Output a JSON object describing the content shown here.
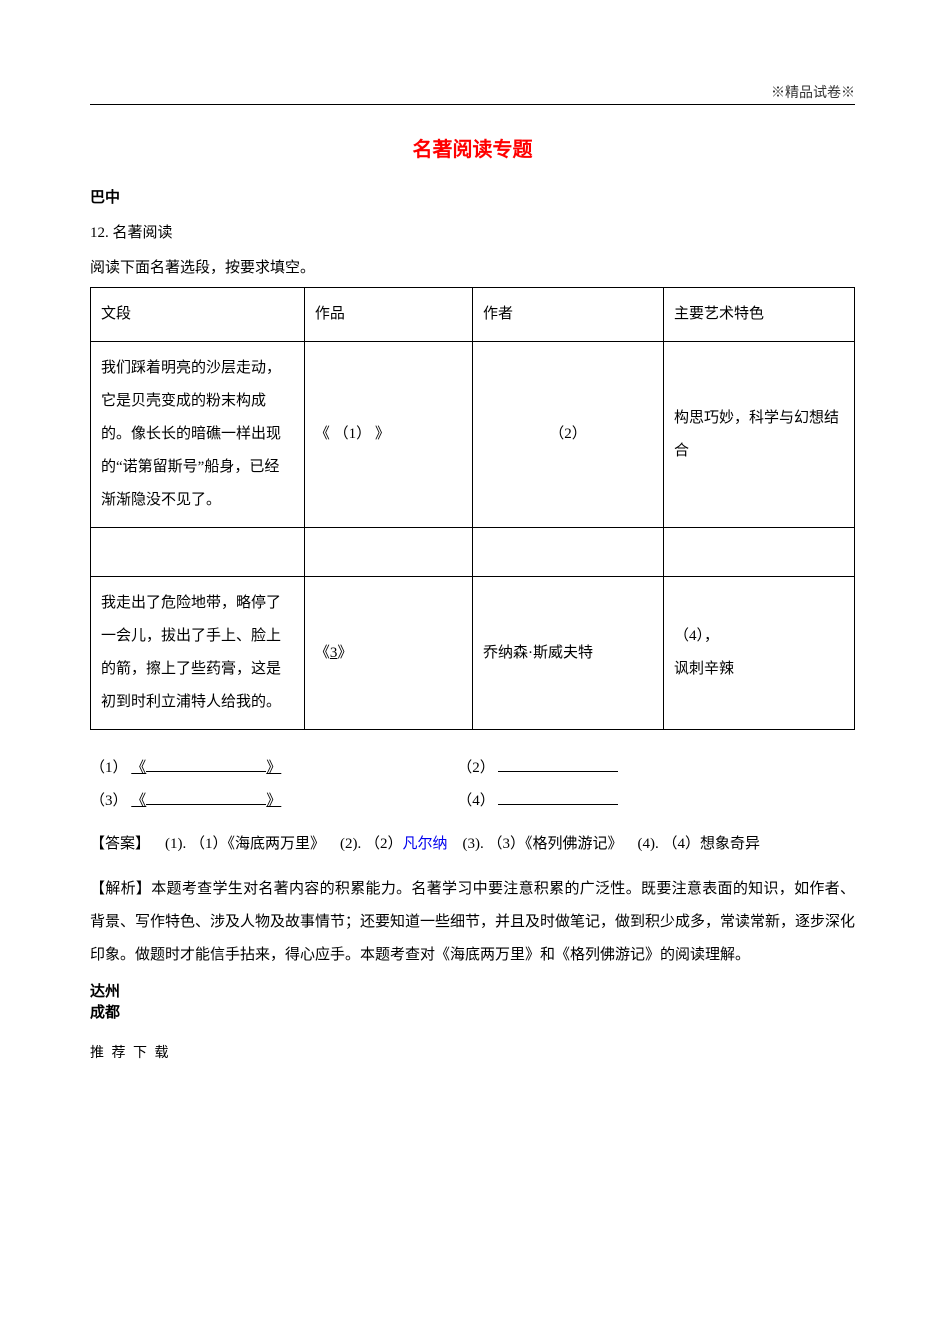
{
  "watermark": "※精品试卷※",
  "title": "名著阅读专题",
  "section_bazhong": "巴中",
  "qnum": "12.  名著阅读",
  "instruction": "阅读下面名著选段，按要求填空。",
  "table": {
    "headers": [
      "文段",
      "作品",
      "作者",
      "主要艺术特色"
    ],
    "row1": {
      "passage": "我们踩着明亮的沙层走动，它是贝壳变成的粉末构成的。像长长的暗礁一样出现的“诺第留斯号”船身，已经渐渐隐没不见了。",
      "work": "《   （1）  》",
      "author": "（2）",
      "feature": "构思巧妙，科学与幻想结合"
    },
    "row2": {
      "passage": "我走出了危险地带，略停了一会儿，拔出了手上、脸上的箭，擦上了些药膏，这是初到时利立浦特人给我的。",
      "work_prefix": "《",
      "work_num": "3",
      "work_suffix": "》",
      "author": "乔纳森·斯威夫特",
      "feature": "  （4），\n讽刺辛辣"
    }
  },
  "blanks": {
    "b1_label": "（1）",
    "b1_open": "《",
    "b1_close": "》",
    "b2_label": "（2）",
    "b3_label": "（3）",
    "b3_open": "《",
    "b3_close": "》",
    "b4_label": "（4）"
  },
  "answer": {
    "label": "【答案】",
    "a1": "(1). （1）《海底两万里》",
    "a2_pre": "(2). （2）",
    "a2_blue": "凡尔纳",
    "a3": "(3). （3）《格列佛游记》",
    "a4": "(4). （4）想象奇异"
  },
  "explanation": {
    "label": "【解析】",
    "text": "本题考查学生对名著内容的积累能力。名著学习中要注意积累的广泛性。既要注意表面的知识，如作者、背景、写作特色、涉及人物及故事情节；还要知道一些细节，并且及时做笔记，做到积少成多，常读常新，逐步深化印象。做题时才能信手拈来，得心应手。本题考查对《海底两万里》和《格列佛游记》的阅读理解。"
  },
  "section_dazhou": "达州",
  "section_chengdu": "成都",
  "footer": "推 荐 下 载"
}
